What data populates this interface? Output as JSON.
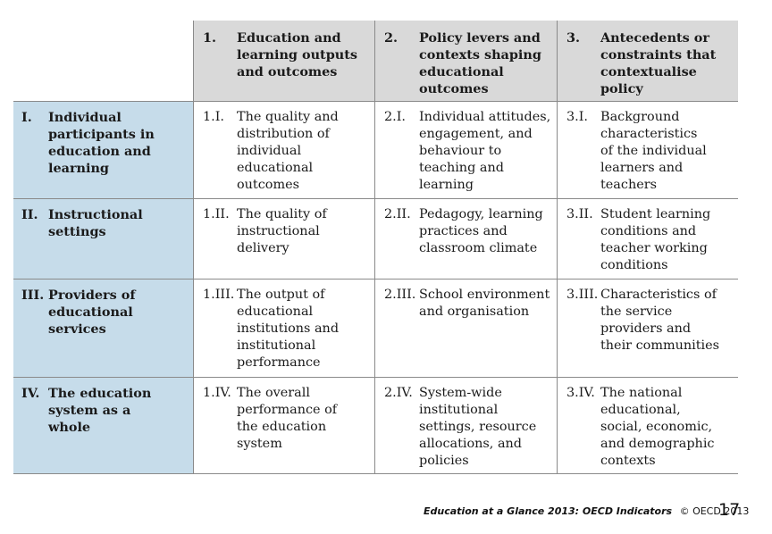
{
  "columns": [
    {
      "num": "1.",
      "title": "Education and learning outputs and outcomes"
    },
    {
      "num": "2.",
      "title": "Policy levers and contexts shaping educational outcomes"
    },
    {
      "num": "3.",
      "title": "Antecedents or constraints that contextualise policy"
    }
  ],
  "rows": [
    {
      "num": "I.",
      "title": "Individual participants in education and learning",
      "cells": [
        {
          "num": "1.I.",
          "text": "The quality and distribution of individual educational outcomes"
        },
        {
          "num": "2.I.",
          "text": "Individual attitudes, engagement, and behaviour to teaching and learning"
        },
        {
          "num": "3.I.",
          "text": "Background characteristics of the individual learners and teachers"
        }
      ]
    },
    {
      "num": "II.",
      "title": "Instructional settings",
      "cells": [
        {
          "num": "1.II.",
          "text": "The quality of instructional delivery"
        },
        {
          "num": "2.II.",
          "text": "Pedagogy, learning practices and classroom climate"
        },
        {
          "num": "3.II.",
          "text": "Student learning conditions and teacher working conditions"
        }
      ]
    },
    {
      "num": "III.",
      "title": "Providers of educational services",
      "cells": [
        {
          "num": "1.III.",
          "text": "The output of educational institutions and institutional performance"
        },
        {
          "num": "2.III.",
          "text": "School environment and organisation"
        },
        {
          "num": "3.III.",
          "text": "Characteristics of the service providers and their communities"
        }
      ]
    },
    {
      "num": "IV.",
      "title": "The education system as a whole",
      "cells": [
        {
          "num": "1.IV.",
          "text": "The overall performance of the education system"
        },
        {
          "num": "2.IV.",
          "text": "System-wide institutional settings, resource allocations, and policies"
        },
        {
          "num": "3.IV.",
          "text": "The national educational, social, economic, and demographic contexts"
        }
      ]
    }
  ],
  "footer": {
    "title": "Education at a Glance 2013: OECD Indicators",
    "copyright": "© OECD 2013",
    "page": "17"
  }
}
